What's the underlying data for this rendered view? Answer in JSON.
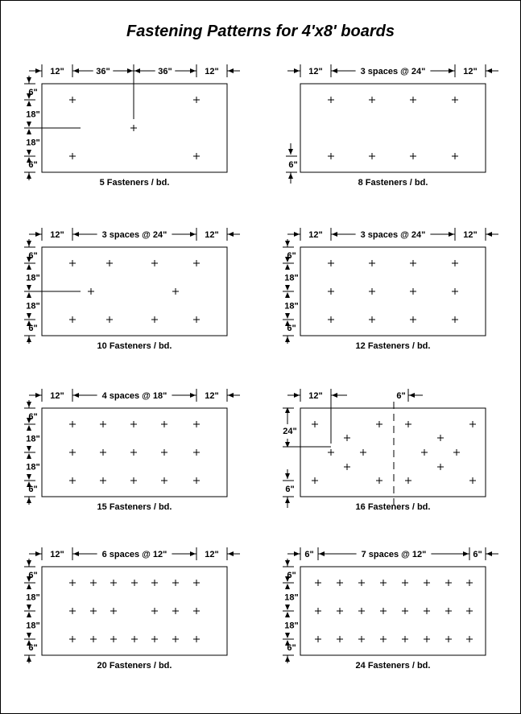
{
  "title": "Fastening Patterns for 4'x8' boards",
  "panels": [
    {
      "id": "p5",
      "caption": "5 Fasteners / bd.",
      "top": [
        "12\"",
        "36\"",
        "36\"",
        "12\""
      ],
      "left": [
        "6\"",
        "18\"",
        "18\"",
        "6\""
      ]
    },
    {
      "id": "p8",
      "caption": "8 Fasteners / bd.",
      "top": [
        "12\"",
        "3 spaces @ 24\"",
        "12\""
      ],
      "left": [
        "6\""
      ]
    },
    {
      "id": "p10",
      "caption": "10 Fasteners / bd.",
      "top": [
        "12\"",
        "3 spaces @ 24\"",
        "12\""
      ],
      "left": [
        "6\"",
        "18\"",
        "18\"",
        "6\""
      ]
    },
    {
      "id": "p12",
      "caption": "12 Fasteners / bd.",
      "top": [
        "12\"",
        "3 spaces @ 24\"",
        "12\""
      ],
      "left": [
        "6\"",
        "18\"",
        "18\"",
        "6\""
      ]
    },
    {
      "id": "p15",
      "caption": "15 Fasteners / bd.",
      "top": [
        "12\"",
        "4 spaces @ 18\"",
        "12\""
      ],
      "left": [
        "6\"",
        "18\"",
        "18\"",
        "6\""
      ]
    },
    {
      "id": "p16",
      "caption": "16 Fasteners / bd.",
      "top": [
        "12\"",
        "6\""
      ],
      "left": [
        "24\"",
        "6\""
      ]
    },
    {
      "id": "p20",
      "caption": "20 Fasteners / bd.",
      "top": [
        "12\"",
        "6 spaces @ 12\"",
        "12\""
      ],
      "left": [
        "6\"",
        "18\"",
        "18\"",
        "6\""
      ]
    },
    {
      "id": "p24",
      "caption": "24 Fasteners / bd.",
      "top": [
        "6\"",
        "7 spaces @ 12\"",
        "6\""
      ],
      "left": [
        "6\"",
        "18\"",
        "18\"",
        "6\""
      ]
    }
  ]
}
